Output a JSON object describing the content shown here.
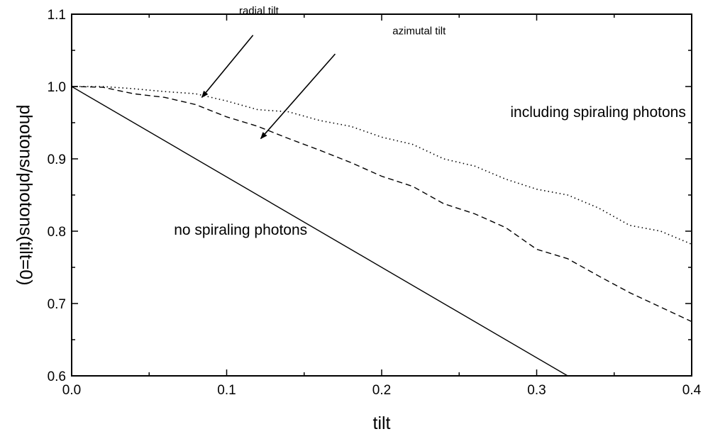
{
  "chart_data": {
    "type": "line",
    "xlabel": "tilt",
    "ylabel": "photons/photons(tilt=0)",
    "xlim": [
      0.0,
      0.4
    ],
    "ylim": [
      0.6,
      1.1
    ],
    "xticks": [
      "0.0",
      "0.1",
      "0.2",
      "0.3",
      "0.4"
    ],
    "yticks": [
      "0.6",
      "0.7",
      "0.8",
      "0.9",
      "1.0",
      "1.1"
    ],
    "grid": false,
    "series": [
      {
        "style": "solid",
        "color": "#000000",
        "x": [
          0.0,
          0.32
        ],
        "y": [
          1.0,
          0.6
        ]
      },
      {
        "style": "dashed",
        "color": "#000000",
        "x": [
          0.0,
          0.02,
          0.04,
          0.06,
          0.08,
          0.1,
          0.12,
          0.14,
          0.16,
          0.18,
          0.2,
          0.22,
          0.24,
          0.26,
          0.28,
          0.3,
          0.32,
          0.34,
          0.36,
          0.38,
          0.4
        ],
        "y": [
          1.0,
          0.999,
          0.99,
          0.985,
          0.975,
          0.958,
          0.945,
          0.928,
          0.912,
          0.895,
          0.876,
          0.862,
          0.838,
          0.824,
          0.805,
          0.775,
          0.762,
          0.738,
          0.715,
          0.695,
          0.675
        ]
      },
      {
        "style": "dotted",
        "color": "#000000",
        "x": [
          0.0,
          0.02,
          0.04,
          0.06,
          0.08,
          0.1,
          0.12,
          0.14,
          0.16,
          0.18,
          0.2,
          0.22,
          0.24,
          0.26,
          0.28,
          0.3,
          0.32,
          0.34,
          0.36,
          0.38,
          0.4
        ],
        "y": [
          1.0,
          1.0,
          0.997,
          0.993,
          0.99,
          0.98,
          0.968,
          0.965,
          0.953,
          0.945,
          0.93,
          0.92,
          0.9,
          0.89,
          0.872,
          0.858,
          0.85,
          0.832,
          0.808,
          0.8,
          0.782
        ]
      }
    ],
    "annotations": [
      {
        "text": "radial tilt",
        "size": "small",
        "anchor": [
          0.108,
          1.1
        ],
        "arrow_from": [
          0.117,
          1.071
        ],
        "arrow_to": [
          0.084,
          0.985
        ]
      },
      {
        "text": "azimutal tilt",
        "size": "small",
        "anchor": [
          0.207,
          1.072
        ],
        "arrow_from": [
          0.17,
          1.045
        ],
        "arrow_to": [
          0.122,
          0.928
        ]
      },
      {
        "text": "including spiraling photons",
        "size": "big",
        "anchor": [
          0.283,
          0.958
        ]
      },
      {
        "text": "no spiraling photons",
        "size": "big",
        "anchor": [
          0.066,
          0.795
        ]
      }
    ]
  }
}
